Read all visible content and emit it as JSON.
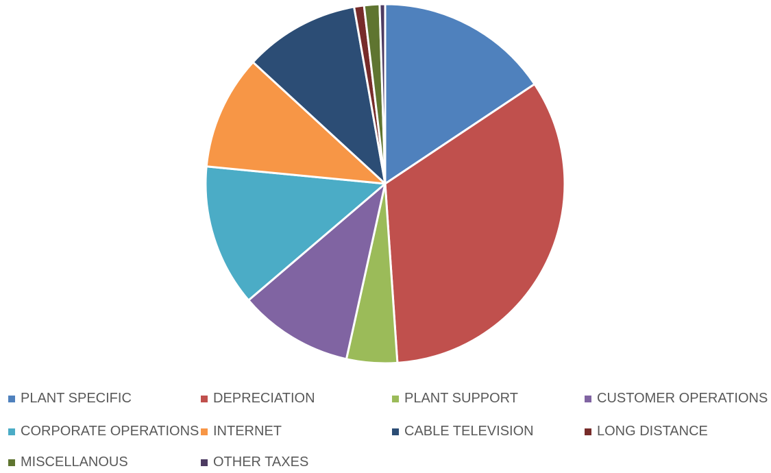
{
  "chart_data": {
    "type": "pie",
    "title": "",
    "legend_position": "bottom",
    "slices": [
      {
        "label": "PLANT SPECIFIC",
        "value": 15.8,
        "color": "#4F81BD"
      },
      {
        "label": "DEPRECIATION",
        "value": 33.6,
        "color": "#C0504D"
      },
      {
        "label": "PLANT SUPPORT",
        "value": 4.6,
        "color": "#9BBB59"
      },
      {
        "label": "CUSTOMER OPERATIONS",
        "value": 10.4,
        "color": "#8064A2"
      },
      {
        "label": "CORPORATE OPERATIONS",
        "value": 12.9,
        "color": "#4BACC6"
      },
      {
        "label": "INTERNET",
        "value": 10.4,
        "color": "#F79646"
      },
      {
        "label": "CABLE TELEVISION",
        "value": 10.5,
        "color": "#2C4D75"
      },
      {
        "label": "LONG DISTANCE",
        "value": 0.9,
        "color": "#772C2A"
      },
      {
        "label": "MISCELLANOUS",
        "value": 1.4,
        "color": "#5F7530"
      },
      {
        "label": "OTHER TAXES",
        "value": 0.5,
        "color": "#4D3B62"
      }
    ]
  }
}
